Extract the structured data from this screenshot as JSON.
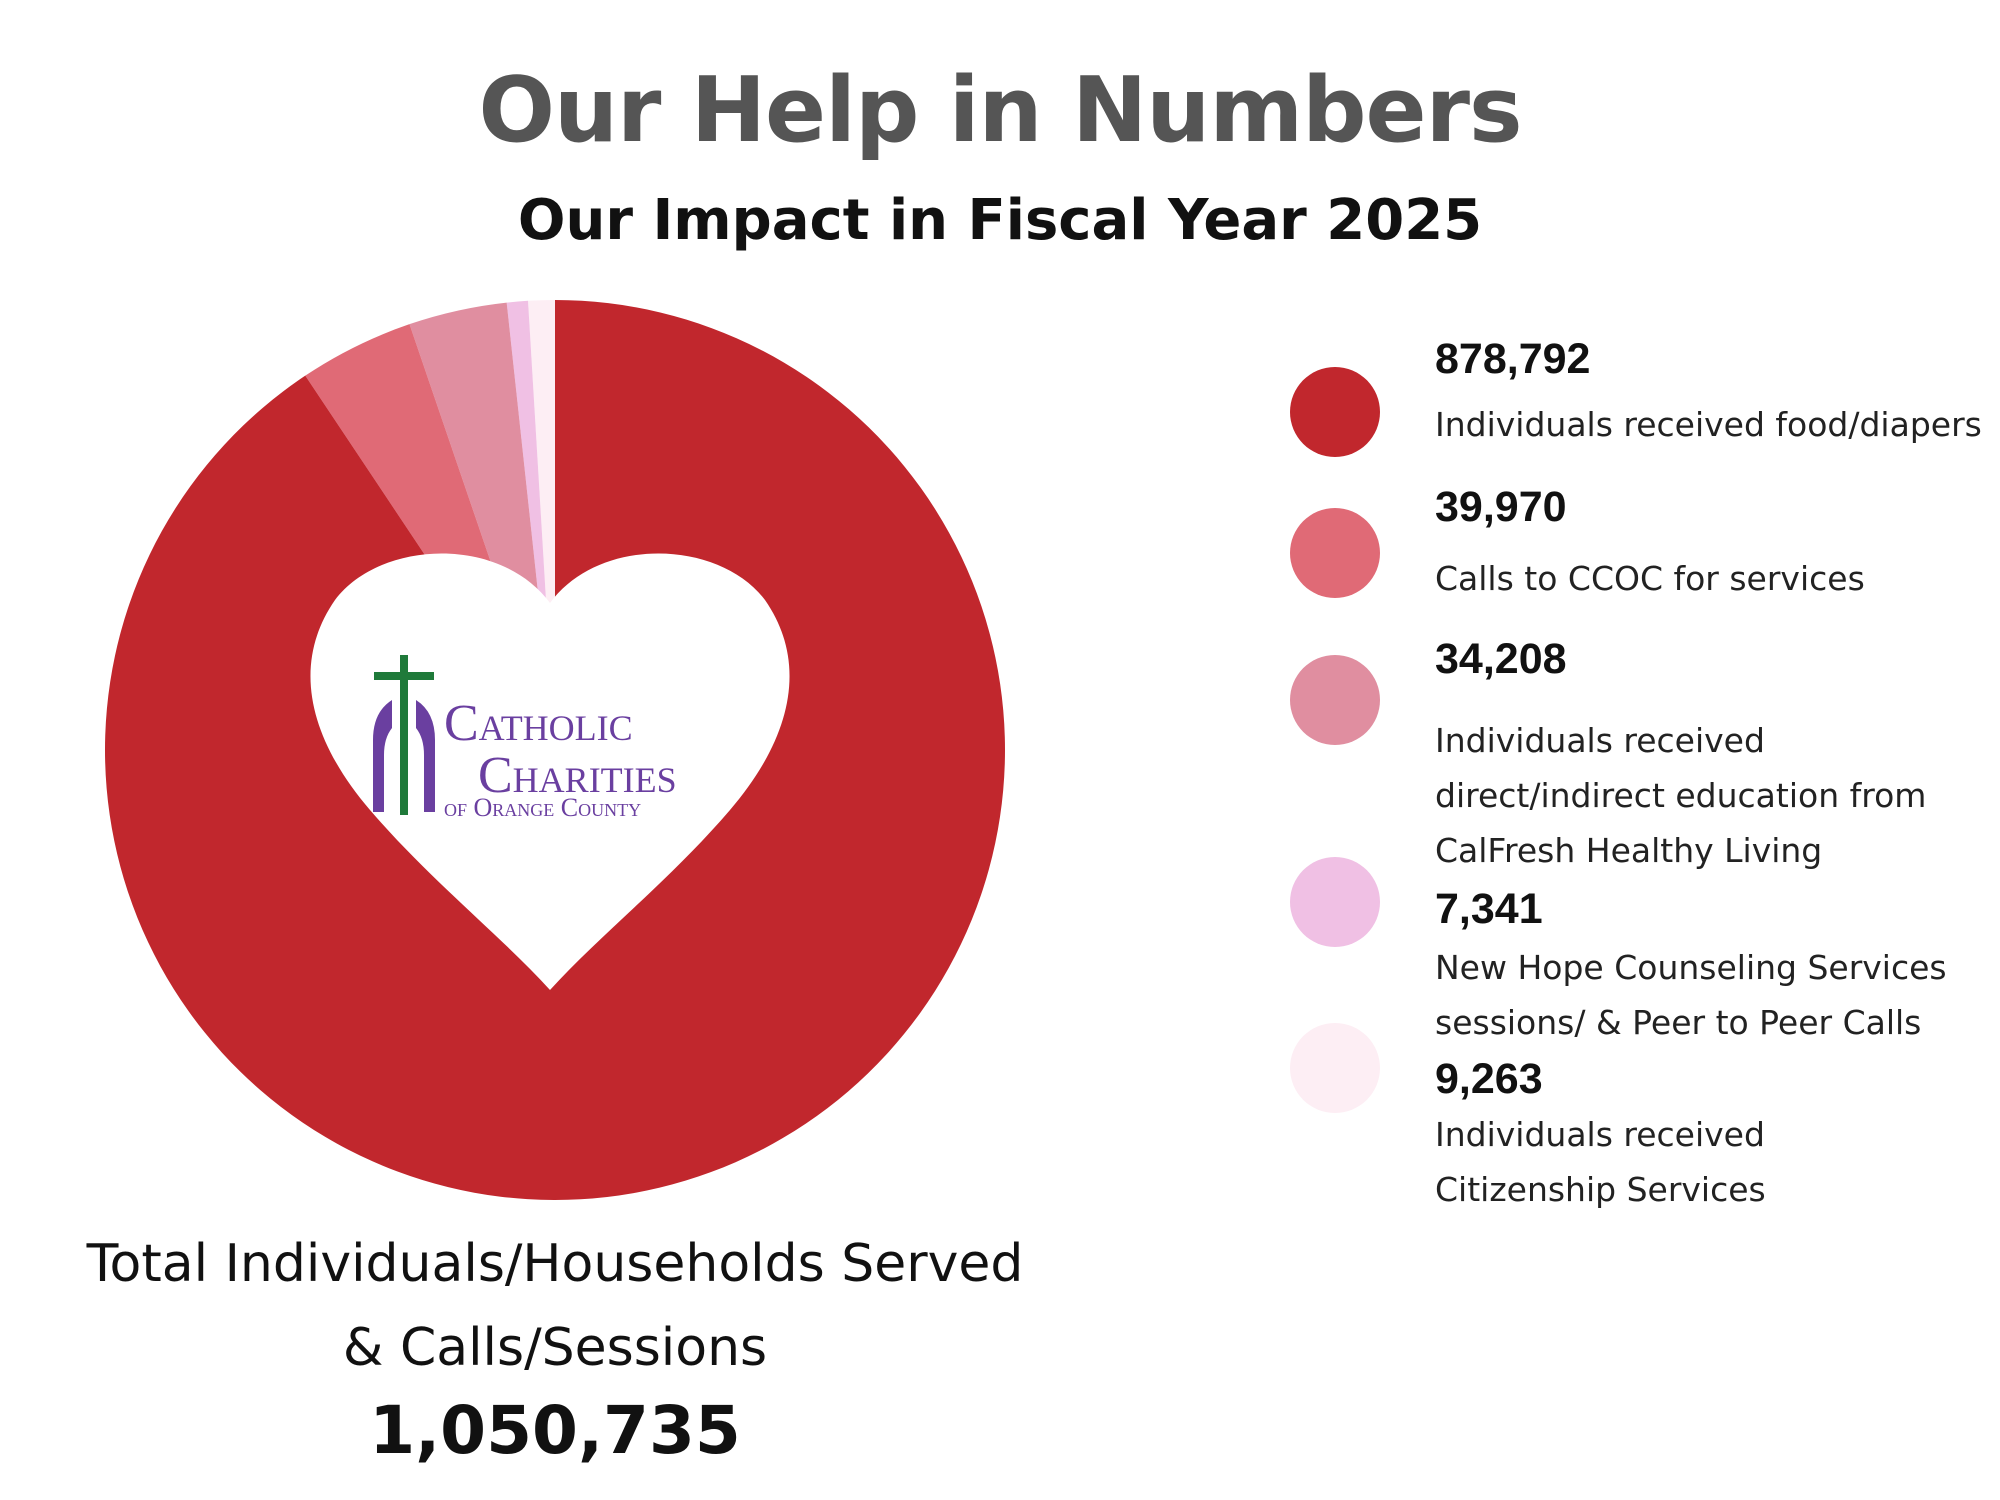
{
  "header": {
    "title": "Our Help in Numbers",
    "subtitle": "Our Impact in Fiscal Year 2025"
  },
  "logo": {
    "line1": "Catholic",
    "line2": "Charities",
    "line3": "of Orange County",
    "colors": {
      "text": "#6a3fa0",
      "cross": "#1f7a3a"
    }
  },
  "total": {
    "label_line1": "Total Individuals/Households Served",
    "label_line2": "& Calls/Sessions",
    "value": "1,050,735"
  },
  "chart_data": {
    "type": "pie",
    "title": "Our Help in Numbers",
    "subtitle": "Our Impact in Fiscal Year 2025",
    "legend_position": "right",
    "slices": [
      {
        "value": 878792,
        "value_label": "878,792",
        "label": "Individuals received food/diapers",
        "color": "#c1272d"
      },
      {
        "value": 39970,
        "value_label": "39,970",
        "label": "Calls to CCOC for services",
        "color": "#e06a76"
      },
      {
        "value": 34208,
        "value_label": "34,208",
        "label": "Individuals received direct/indirect education from CalFresh Healthy Living",
        "label_lines": [
          "Individuals received",
          "direct/indirect education from",
          "CalFresh Healthy Living"
        ],
        "color": "#e08ea0"
      },
      {
        "value": 7341,
        "value_label": "7,341",
        "label": "New Hope Counseling Services sessions/ & Peer to Peer Calls",
        "label_lines": [
          "New Hope Counseling Services",
          "sessions/ & Peer to Peer Calls"
        ],
        "color": "#f0c0e4"
      },
      {
        "value": 9263,
        "value_label": "9,263",
        "label": "Individuals received Citizenship Services",
        "label_lines": [
          "Individuals received",
          "Citizenship Services"
        ],
        "color": "#fdeef4"
      }
    ],
    "pie_order": [
      4,
      3,
      2,
      1,
      0
    ]
  }
}
